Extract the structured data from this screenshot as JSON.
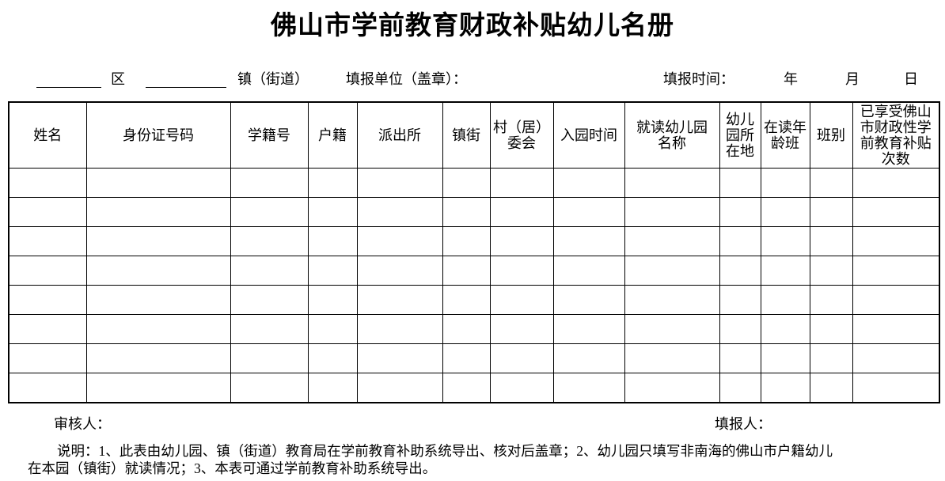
{
  "title": "佛山市学前教育财政补贴幼儿名册",
  "meta": {
    "district_label": "区",
    "town_label": "镇（街道）",
    "unit_label": "填报单位（盖章）：",
    "time_label": "填报时间：",
    "year_label": "年",
    "month_label": "月",
    "day_label": "日"
  },
  "table": {
    "headers": [
      "姓名",
      "身份证号码",
      "学籍号",
      "户籍",
      "派出所",
      "镇街",
      "村（居）\n委会",
      "入园时间",
      "就读幼儿园\n名称",
      "幼儿\n园所\n在地",
      "在读年\n龄班",
      "班别",
      "已享受佛山\n市财政性学\n前教育补贴\n次数"
    ],
    "empty_row_count": 8
  },
  "footer": {
    "reviewer_label": "审核人：",
    "preparer_label": "填报人："
  },
  "note": "说明：1、此表由幼儿园、镇（街道）教育局在学前教育补助系统导出、核对后盖章；2、幼儿园只填写非南海的佛山市户籍幼儿\n在本园（镇街）就读情况；3、本表可通过学前教育补助系统导出。"
}
